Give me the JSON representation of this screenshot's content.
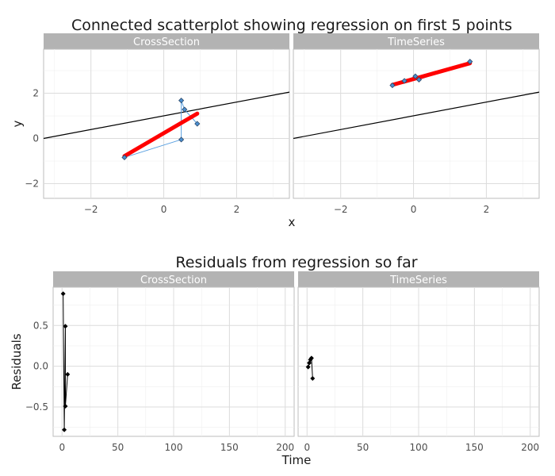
{
  "chart_data": [
    {
      "type": "scatter",
      "title": "Connected scatterplot showing regression on first 5 points",
      "xlabel": "x",
      "ylabel": "y",
      "xlim": [
        -3.3,
        3.45
      ],
      "ylim": [
        -2.65,
        3.95
      ],
      "x_ticks": [
        -2,
        0,
        2
      ],
      "y_ticks": [
        -2,
        0,
        2
      ],
      "grid": true,
      "facets": [
        {
          "name": "CrossSection",
          "points": [
            {
              "x": -1.08,
              "y": -0.84
            },
            {
              "x": 0.48,
              "y": -0.05
            },
            {
              "x": 0.48,
              "y": 1.68
            },
            {
              "x": 0.57,
              "y": 1.28
            },
            {
              "x": 0.92,
              "y": 0.65
            }
          ],
          "fit": {
            "x": [
              -1.08,
              0.92
            ],
            "y": [
              -0.78,
              1.1
            ]
          },
          "reference_line": {
            "x": [
              -3.3,
              3.45
            ],
            "y": [
              0.0,
              2.05
            ]
          }
        },
        {
          "name": "TimeSeries",
          "points": [
            {
              "x": -0.58,
              "y": 2.35
            },
            {
              "x": -0.25,
              "y": 2.55
            },
            {
              "x": 0.05,
              "y": 2.75
            },
            {
              "x": 0.15,
              "y": 2.6
            },
            {
              "x": 1.55,
              "y": 3.4
            }
          ],
          "fit": {
            "x": [
              -0.58,
              1.55
            ],
            "y": [
              2.37,
              3.33
            ]
          },
          "reference_line": {
            "x": [
              -3.3,
              3.45
            ],
            "y": [
              0.0,
              2.05
            ]
          }
        }
      ],
      "colors": {
        "points": "#4a8fd1",
        "points_outline": "#2d4a6b",
        "path": "#5aa0e0",
        "fit": "#ff0000",
        "reference": "#000000"
      }
    },
    {
      "type": "line",
      "title": "Residuals from regression so far",
      "xlabel": "Time",
      "ylabel": "Residuals",
      "xlim": [
        -8,
        208
      ],
      "ylim": [
        -0.86,
        0.97
      ],
      "x_ticks": [
        0,
        50,
        100,
        150,
        200
      ],
      "y_ticks": [
        -0.5,
        0.0,
        0.5
      ],
      "grid": true,
      "facets": [
        {
          "name": "CrossSection",
          "points": [
            {
              "x": 1,
              "y": 0.89
            },
            {
              "x": 2,
              "y": -0.78
            },
            {
              "x": 3,
              "y": 0.49
            },
            {
              "x": 3,
              "y": -0.49
            },
            {
              "x": 5,
              "y": -0.1
            }
          ]
        },
        {
          "name": "TimeSeries",
          "points": [
            {
              "x": 1,
              "y": -0.01
            },
            {
              "x": 2,
              "y": 0.04
            },
            {
              "x": 3,
              "y": 0.08
            },
            {
              "x": 4,
              "y": 0.1
            },
            {
              "x": 5,
              "y": -0.15
            }
          ]
        }
      ],
      "colors": {
        "line": "#000000",
        "points": "#000000"
      }
    }
  ]
}
